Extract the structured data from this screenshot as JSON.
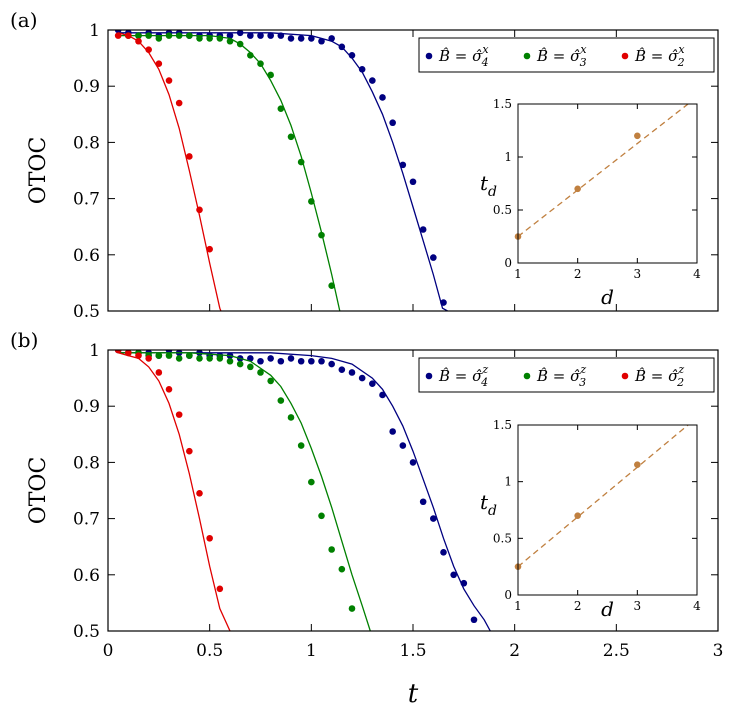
{
  "figure": {
    "xlabel": "t",
    "xticks": [
      "0",
      "0.5",
      "1",
      "1.5",
      "2",
      "2.5",
      "3"
    ]
  },
  "colors": {
    "sigma4": "#000080",
    "sigma3": "#008000",
    "sigma2": "#e00000",
    "inset": "#c08040"
  },
  "chart_data": [
    {
      "type": "scatter",
      "panel_label": "(a)",
      "ylabel": "OTOC",
      "xlim": [
        0,
        3
      ],
      "ylim": [
        0.5,
        1.0
      ],
      "yticks": [
        "0.5",
        "0.6",
        "0.7",
        "0.8",
        "0.9",
        "1"
      ],
      "legend_position": "top-right",
      "series": [
        {
          "name": "B̂ = σ̂₄ˣ",
          "label_base": "B̂ = σ̂",
          "label_sub": "4",
          "label_sup": "x",
          "color_key": "sigma4",
          "points": [
            [
              0.05,
              1.0
            ],
            [
              0.1,
              0.995
            ],
            [
              0.15,
              0.99
            ],
            [
              0.2,
              0.995
            ],
            [
              0.25,
              0.99
            ],
            [
              0.3,
              0.995
            ],
            [
              0.35,
              0.995
            ],
            [
              0.4,
              0.99
            ],
            [
              0.45,
              0.99
            ],
            [
              0.5,
              0.99
            ],
            [
              0.55,
              0.99
            ],
            [
              0.6,
              0.99
            ],
            [
              0.65,
              0.995
            ],
            [
              0.7,
              0.99
            ],
            [
              0.75,
              0.99
            ],
            [
              0.8,
              0.99
            ],
            [
              0.85,
              0.99
            ],
            [
              0.9,
              0.985
            ],
            [
              0.95,
              0.985
            ],
            [
              1.0,
              0.985
            ],
            [
              1.05,
              0.98
            ],
            [
              1.1,
              0.985
            ],
            [
              1.15,
              0.97
            ],
            [
              1.2,
              0.955
            ],
            [
              1.25,
              0.93
            ],
            [
              1.3,
              0.91
            ],
            [
              1.35,
              0.88
            ],
            [
              1.4,
              0.835
            ],
            [
              1.45,
              0.76
            ],
            [
              1.5,
              0.73
            ],
            [
              1.55,
              0.645
            ],
            [
              1.6,
              0.595
            ],
            [
              1.65,
              0.515
            ]
          ],
          "curve": [
            [
              0.05,
              0.995
            ],
            [
              0.2,
              0.995
            ],
            [
              0.4,
              0.995
            ],
            [
              0.6,
              0.995
            ],
            [
              0.8,
              0.995
            ],
            [
              1.0,
              0.99
            ],
            [
              1.05,
              0.985
            ],
            [
              1.1,
              0.98
            ],
            [
              1.15,
              0.97
            ],
            [
              1.2,
              0.95
            ],
            [
              1.25,
              0.925
            ],
            [
              1.3,
              0.89
            ],
            [
              1.35,
              0.85
            ],
            [
              1.4,
              0.8
            ],
            [
              1.45,
              0.745
            ],
            [
              1.5,
              0.685
            ],
            [
              1.55,
              0.625
            ],
            [
              1.6,
              0.565
            ],
            [
              1.645,
              0.505
            ],
            [
              1.67,
              0.5
            ]
          ]
        },
        {
          "name": "B̂ = σ̂₃ˣ",
          "label_base": "B̂ = σ̂",
          "label_sub": "3",
          "label_sup": "x",
          "color_key": "sigma3",
          "points": [
            [
              0.1,
              0.99
            ],
            [
              0.15,
              0.99
            ],
            [
              0.2,
              0.99
            ],
            [
              0.25,
              0.985
            ],
            [
              0.3,
              0.99
            ],
            [
              0.35,
              0.99
            ],
            [
              0.4,
              0.99
            ],
            [
              0.45,
              0.985
            ],
            [
              0.5,
              0.985
            ],
            [
              0.55,
              0.985
            ],
            [
              0.6,
              0.98
            ],
            [
              0.65,
              0.975
            ],
            [
              0.7,
              0.955
            ],
            [
              0.75,
              0.94
            ],
            [
              0.8,
              0.92
            ],
            [
              0.85,
              0.86
            ],
            [
              0.9,
              0.81
            ],
            [
              0.95,
              0.765
            ],
            [
              1.0,
              0.695
            ],
            [
              1.05,
              0.635
            ],
            [
              1.1,
              0.545
            ]
          ],
          "curve": [
            [
              0.05,
              0.99
            ],
            [
              0.2,
              0.99
            ],
            [
              0.4,
              0.99
            ],
            [
              0.5,
              0.99
            ],
            [
              0.6,
              0.985
            ],
            [
              0.65,
              0.975
            ],
            [
              0.7,
              0.96
            ],
            [
              0.75,
              0.94
            ],
            [
              0.8,
              0.91
            ],
            [
              0.85,
              0.875
            ],
            [
              0.9,
              0.83
            ],
            [
              0.95,
              0.775
            ],
            [
              1.0,
              0.71
            ],
            [
              1.05,
              0.64
            ],
            [
              1.1,
              0.565
            ],
            [
              1.14,
              0.5
            ]
          ]
        },
        {
          "name": "B̂ = σ̂₂ˣ",
          "label_base": "B̂ = σ̂",
          "label_sub": "2",
          "label_sup": "x",
          "color_key": "sigma2",
          "points": [
            [
              0.05,
              0.99
            ],
            [
              0.1,
              0.99
            ],
            [
              0.15,
              0.98
            ],
            [
              0.2,
              0.965
            ],
            [
              0.25,
              0.94
            ],
            [
              0.3,
              0.91
            ],
            [
              0.35,
              0.87
            ],
            [
              0.4,
              0.775
            ],
            [
              0.45,
              0.68
            ],
            [
              0.5,
              0.61
            ]
          ],
          "curve": [
            [
              0.05,
              0.995
            ],
            [
              0.1,
              0.99
            ],
            [
              0.15,
              0.98
            ],
            [
              0.2,
              0.96
            ],
            [
              0.25,
              0.93
            ],
            [
              0.3,
              0.885
            ],
            [
              0.35,
              0.825
            ],
            [
              0.4,
              0.75
            ],
            [
              0.45,
              0.67
            ],
            [
              0.5,
              0.585
            ],
            [
              0.55,
              0.505
            ],
            [
              0.555,
              0.5
            ]
          ]
        }
      ],
      "inset": {
        "xlabel": "d",
        "ylabel": "t",
        "ylabel_sub": "d",
        "xlim": [
          1,
          4
        ],
        "ylim": [
          0,
          1.5
        ],
        "xticks": [
          "1",
          "2",
          "3",
          "4"
        ],
        "yticks": [
          "0",
          "0.5",
          "1",
          "1.5"
        ],
        "points": [
          [
            1,
            0.25
          ],
          [
            2,
            0.7
          ],
          [
            3,
            1.2
          ]
        ],
        "fit_line": [
          [
            1,
            0.25
          ],
          [
            3.85,
            1.5
          ]
        ]
      }
    },
    {
      "type": "scatter",
      "panel_label": "(b)",
      "ylabel": "OTOC",
      "xlim": [
        0,
        3
      ],
      "ylim": [
        0.5,
        1.0
      ],
      "yticks": [
        "0.5",
        "0.6",
        "0.7",
        "0.8",
        "0.9",
        "1"
      ],
      "legend_position": "top-right",
      "series": [
        {
          "name": "B̂ = σ̂₄ᶻ",
          "label_base": "B̂ = σ̂",
          "label_sub": "4",
          "label_sup": "z",
          "color_key": "sigma4",
          "points": [
            [
              0.05,
              1.0
            ],
            [
              0.1,
              0.995
            ],
            [
              0.15,
              0.995
            ],
            [
              0.2,
              0.995
            ],
            [
              0.25,
              0.99
            ],
            [
              0.3,
              1.0
            ],
            [
              0.35,
              0.995
            ],
            [
              0.4,
              0.99
            ],
            [
              0.45,
              0.995
            ],
            [
              0.5,
              0.99
            ],
            [
              0.55,
              0.99
            ],
            [
              0.6,
              0.99
            ],
            [
              0.65,
              0.985
            ],
            [
              0.7,
              0.985
            ],
            [
              0.75,
              0.98
            ],
            [
              0.8,
              0.985
            ],
            [
              0.85,
              0.98
            ],
            [
              0.9,
              0.985
            ],
            [
              0.95,
              0.98
            ],
            [
              1.0,
              0.98
            ],
            [
              1.05,
              0.98
            ],
            [
              1.1,
              0.975
            ],
            [
              1.15,
              0.965
            ],
            [
              1.2,
              0.96
            ],
            [
              1.25,
              0.95
            ],
            [
              1.3,
              0.94
            ],
            [
              1.35,
              0.92
            ],
            [
              1.4,
              0.855
            ],
            [
              1.45,
              0.83
            ],
            [
              1.5,
              0.8
            ],
            [
              1.55,
              0.73
            ],
            [
              1.6,
              0.7
            ],
            [
              1.65,
              0.64
            ],
            [
              1.7,
              0.6
            ],
            [
              1.75,
              0.585
            ],
            [
              1.8,
              0.52
            ]
          ],
          "curve": [
            [
              0.05,
              0.995
            ],
            [
              0.3,
              0.995
            ],
            [
              0.6,
              0.995
            ],
            [
              0.8,
              0.995
            ],
            [
              1.0,
              0.99
            ],
            [
              1.1,
              0.985
            ],
            [
              1.2,
              0.975
            ],
            [
              1.3,
              0.95
            ],
            [
              1.35,
              0.93
            ],
            [
              1.4,
              0.9
            ],
            [
              1.45,
              0.865
            ],
            [
              1.5,
              0.82
            ],
            [
              1.55,
              0.77
            ],
            [
              1.6,
              0.72
            ],
            [
              1.65,
              0.665
            ],
            [
              1.7,
              0.615
            ],
            [
              1.75,
              0.575
            ],
            [
              1.8,
              0.545
            ],
            [
              1.85,
              0.52
            ],
            [
              1.88,
              0.5
            ]
          ]
        },
        {
          "name": "B̂ = σ̂₃ᶻ",
          "label_base": "B̂ = σ̂",
          "label_sub": "3",
          "label_sup": "z",
          "color_key": "sigma3",
          "points": [
            [
              0.1,
              0.995
            ],
            [
              0.15,
              0.995
            ],
            [
              0.2,
              0.99
            ],
            [
              0.25,
              0.99
            ],
            [
              0.3,
              0.99
            ],
            [
              0.35,
              0.985
            ],
            [
              0.4,
              0.99
            ],
            [
              0.45,
              0.985
            ],
            [
              0.5,
              0.985
            ],
            [
              0.55,
              0.985
            ],
            [
              0.6,
              0.98
            ],
            [
              0.65,
              0.975
            ],
            [
              0.7,
              0.97
            ],
            [
              0.75,
              0.96
            ],
            [
              0.8,
              0.945
            ],
            [
              0.85,
              0.91
            ],
            [
              0.9,
              0.88
            ],
            [
              0.95,
              0.83
            ],
            [
              1.0,
              0.765
            ],
            [
              1.05,
              0.705
            ],
            [
              1.1,
              0.645
            ],
            [
              1.15,
              0.61
            ],
            [
              1.2,
              0.54
            ]
          ],
          "curve": [
            [
              0.05,
              0.995
            ],
            [
              0.4,
              0.995
            ],
            [
              0.6,
              0.99
            ],
            [
              0.7,
              0.98
            ],
            [
              0.8,
              0.955
            ],
            [
              0.85,
              0.935
            ],
            [
              0.9,
              0.905
            ],
            [
              0.95,
              0.87
            ],
            [
              1.0,
              0.825
            ],
            [
              1.05,
              0.775
            ],
            [
              1.1,
              0.72
            ],
            [
              1.15,
              0.66
            ],
            [
              1.2,
              0.6
            ],
            [
              1.25,
              0.545
            ],
            [
              1.29,
              0.5
            ]
          ]
        },
        {
          "name": "B̂ = σ̂₂ᶻ",
          "label_base": "B̂ = σ̂",
          "label_sub": "2",
          "label_sup": "z",
          "color_key": "sigma2",
          "points": [
            [
              0.05,
              1.0
            ],
            [
              0.1,
              0.995
            ],
            [
              0.15,
              0.99
            ],
            [
              0.2,
              0.985
            ],
            [
              0.25,
              0.96
            ],
            [
              0.3,
              0.93
            ],
            [
              0.35,
              0.885
            ],
            [
              0.4,
              0.82
            ],
            [
              0.45,
              0.745
            ],
            [
              0.5,
              0.665
            ],
            [
              0.55,
              0.575
            ]
          ],
          "curve": [
            [
              0.05,
              0.995
            ],
            [
              0.1,
              0.99
            ],
            [
              0.15,
              0.985
            ],
            [
              0.2,
              0.97
            ],
            [
              0.25,
              0.945
            ],
            [
              0.3,
              0.905
            ],
            [
              0.35,
              0.85
            ],
            [
              0.4,
              0.78
            ],
            [
              0.45,
              0.7
            ],
            [
              0.5,
              0.615
            ],
            [
              0.55,
              0.54
            ],
            [
              0.6,
              0.5
            ]
          ]
        }
      ],
      "inset": {
        "xlabel": "d",
        "ylabel": "t",
        "ylabel_sub": "d",
        "xlim": [
          1,
          4
        ],
        "ylim": [
          0,
          1.5
        ],
        "xticks": [
          "1",
          "2",
          "3",
          "4"
        ],
        "yticks": [
          "0",
          "0.5",
          "1",
          "1.5"
        ],
        "points": [
          [
            1,
            0.25
          ],
          [
            2,
            0.7
          ],
          [
            3,
            1.15
          ]
        ],
        "fit_line": [
          [
            1,
            0.25
          ],
          [
            3.85,
            1.5
          ]
        ]
      }
    }
  ]
}
